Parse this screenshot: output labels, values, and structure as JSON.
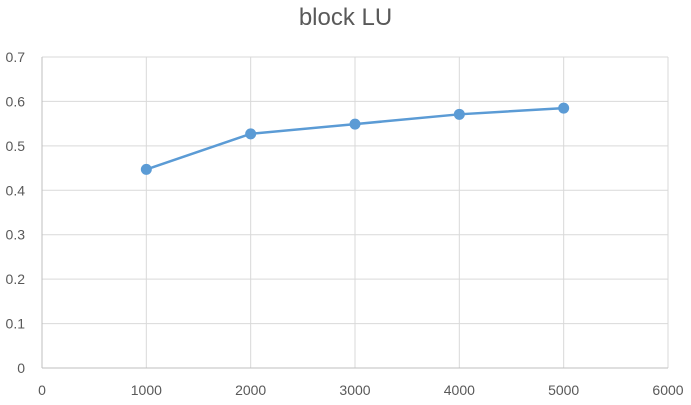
{
  "chart_data": {
    "type": "line",
    "title": "block LU",
    "xlabel": "",
    "ylabel": "",
    "x": [
      1000,
      2000,
      3000,
      4000,
      5000
    ],
    "series": [
      {
        "values": [
          0.447,
          0.527,
          0.549,
          0.571,
          0.585
        ]
      }
    ],
    "xlim": [
      0,
      6000
    ],
    "ylim": [
      0,
      0.7
    ],
    "x_ticks": [
      0,
      1000,
      2000,
      3000,
      4000,
      5000,
      6000
    ],
    "y_ticks": [
      0,
      0.1,
      0.2,
      0.3,
      0.4,
      0.5,
      0.6,
      0.7
    ],
    "y_tick_labels": [
      "0",
      "0.1",
      "0.2",
      "0.3",
      "0.4",
      "0.5",
      "0.6",
      "0.7"
    ],
    "grid": true,
    "legend": "none",
    "colors": {
      "series": "#5b9bd5"
    }
  }
}
